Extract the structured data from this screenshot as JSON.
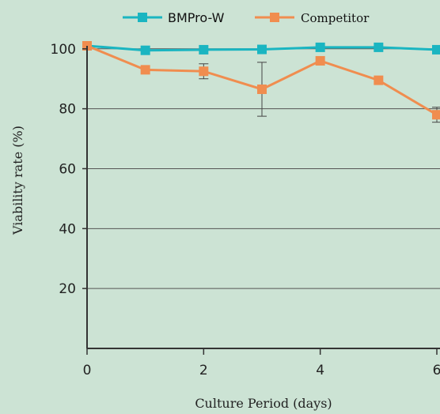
{
  "chart_data": {
    "type": "line",
    "xlabel": "Culture Period (days)",
    "ylabel": "Viability rate (%)",
    "xlim": [
      0,
      6
    ],
    "ylim": [
      0,
      101
    ],
    "x_ticks": [
      0,
      2,
      4,
      6
    ],
    "y_ticks": [
      20,
      40,
      60,
      80,
      100
    ],
    "grid": "horizontal",
    "legend_position": "top",
    "x": [
      0,
      1,
      2,
      3,
      4,
      5,
      6
    ],
    "series": [
      {
        "name": "BMPro-W",
        "color": "#1ab5c1",
        "marker": "square",
        "values": [
          101,
          99.5,
          99.7,
          99.8,
          100.5,
          100.5,
          99.7
        ],
        "errors": [
          0,
          0,
          0,
          0,
          0,
          0,
          0
        ]
      },
      {
        "name": "Competitor",
        "color": "#f08d4f",
        "marker": "square",
        "values": [
          101,
          93,
          92.5,
          86.5,
          96,
          89.5,
          78
        ],
        "errors": [
          0,
          0,
          2.5,
          9,
          0,
          0,
          2.5
        ]
      }
    ]
  }
}
